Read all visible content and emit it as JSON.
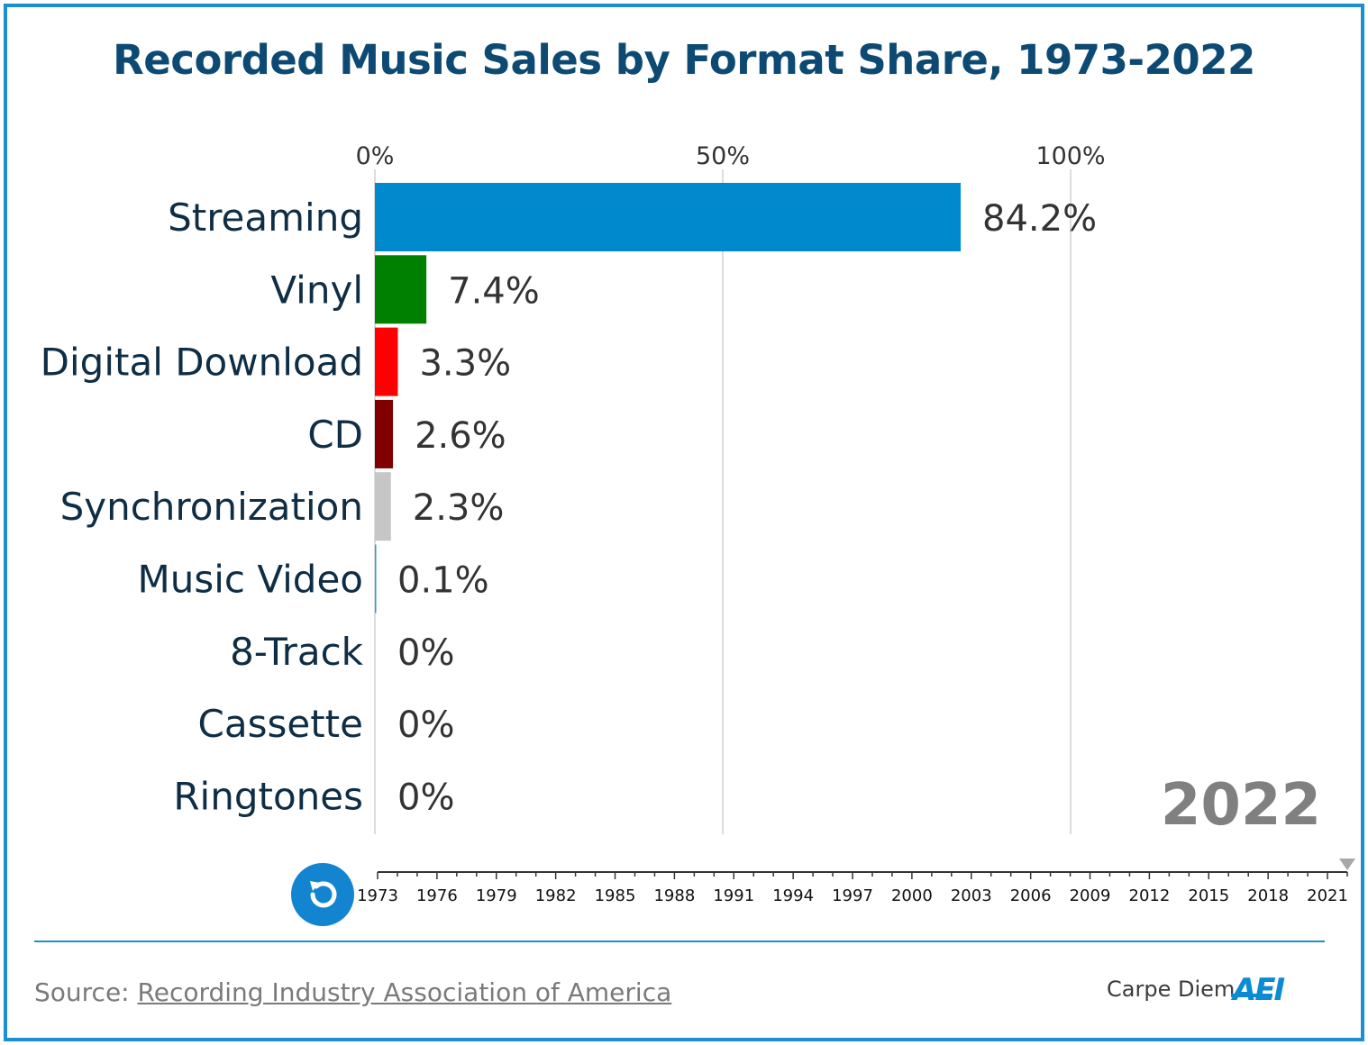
{
  "title": "Recorded Music Sales by Format Share, 1973-2022",
  "chart_data": {
    "type": "bar",
    "orientation": "horizontal",
    "title": "Recorded Music Sales by Format Share, 1973-2022",
    "categories": [
      "Streaming",
      "Vinyl",
      "Digital Download",
      "CD",
      "Synchronization",
      "Music Video",
      "8-Track",
      "Cassette",
      "Ringtones"
    ],
    "values": [
      84.2,
      7.4,
      3.3,
      2.6,
      2.3,
      0.1,
      0,
      0,
      0
    ],
    "value_labels": [
      "84.2%",
      "7.4%",
      "3.3%",
      "2.6%",
      "2.3%",
      "0.1%",
      "0%",
      "0%",
      "0%"
    ],
    "colors": [
      "#0089cc",
      "#008000",
      "#ff0000",
      "#800000",
      "#c6c6c6",
      "#3399dd",
      "#999999",
      "#999999",
      "#999999"
    ],
    "xlim": [
      0,
      100
    ],
    "xticks": [
      0,
      50,
      100
    ],
    "xtick_labels": [
      "0%",
      "50%",
      "100%"
    ],
    "grid": true,
    "current_year": "2022",
    "timeline": {
      "range": [
        1973,
        2022
      ],
      "tick_years": [
        1973,
        1976,
        1979,
        1982,
        1985,
        1988,
        1991,
        1994,
        1997,
        2000,
        2003,
        2006,
        2009,
        2012,
        2015,
        2018,
        2021
      ],
      "tick_labels": [
        "1973",
        "1976",
        "1979",
        "1982",
        "1985",
        "1988",
        "1991",
        "1994",
        "1997",
        "2000",
        "2003",
        "2006",
        "2009",
        "2012",
        "2015",
        "2018",
        "2021"
      ],
      "current": 2022
    }
  },
  "source": {
    "prefix": "Source: ",
    "link_text": "Recording Industry Association of America"
  },
  "brand": {
    "text": "Carpe Diem",
    "logo_text": "AEI"
  },
  "colors": {
    "frame": "#1b8fd1",
    "title": "#0d4a73",
    "replay_button": "#1385d0"
  },
  "icons": {
    "replay": "replay-icon"
  }
}
